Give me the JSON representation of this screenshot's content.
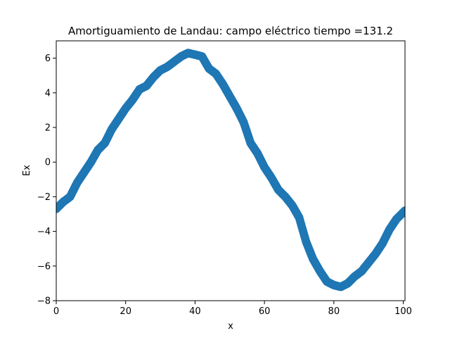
{
  "chart_data": {
    "type": "scatter",
    "title": "Amortiguamiento de Landau: campo eléctrico  tiempo =131.2",
    "xlabel": "x",
    "ylabel": "Ex",
    "xlim": [
      0,
      100.5
    ],
    "ylim": [
      -8,
      7
    ],
    "xticks": [
      0,
      20,
      40,
      60,
      80,
      100
    ],
    "yticks": [
      -8,
      -6,
      -4,
      -2,
      0,
      2,
      4,
      6
    ],
    "xtick_labels": [
      "0",
      "20",
      "40",
      "60",
      "80",
      "100"
    ],
    "ytick_labels": [
      "−8",
      "−6",
      "−4",
      "−2",
      "0",
      "2",
      "4",
      "6"
    ],
    "grid": false,
    "legend": false,
    "series": [
      {
        "color": "#1f77b4",
        "x": [
          0,
          2,
          4,
          6,
          8,
          10,
          12,
          14,
          16,
          18,
          20,
          22,
          24,
          26,
          28,
          30,
          32,
          34,
          36,
          38,
          40,
          42,
          44,
          46,
          48,
          50,
          52,
          54,
          56,
          58,
          60,
          62,
          64,
          66,
          68,
          70,
          72,
          74,
          76,
          78,
          80,
          82,
          84,
          86,
          88,
          90,
          92,
          94,
          96,
          98,
          100.5
        ],
        "y": [
          -2.7,
          -2.3,
          -2.0,
          -1.2,
          -0.6,
          0.0,
          0.7,
          1.1,
          1.9,
          2.5,
          3.1,
          3.6,
          4.2,
          4.4,
          4.9,
          5.3,
          5.5,
          5.8,
          6.1,
          6.3,
          6.2,
          6.1,
          5.4,
          5.1,
          4.5,
          3.8,
          3.1,
          2.3,
          1.1,
          0.5,
          -0.3,
          -0.9,
          -1.6,
          -2.0,
          -2.5,
          -3.2,
          -4.6,
          -5.6,
          -6.3,
          -6.9,
          -7.1,
          -7.2,
          -7.0,
          -6.6,
          -6.3,
          -5.8,
          -5.3,
          -4.7,
          -3.9,
          -3.3,
          -2.8
        ]
      }
    ]
  }
}
